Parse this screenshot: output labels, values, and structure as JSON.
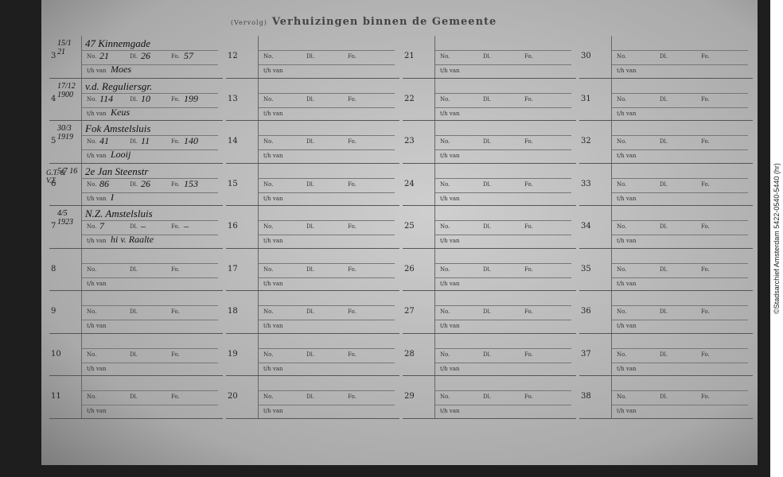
{
  "header": {
    "prefix": "(Vervolg)",
    "title": "Verhuizingen binnen de Gemeente"
  },
  "form_labels": {
    "no": "No.",
    "dl": "Dl.",
    "fo": "Fo.",
    "van": "t/h van"
  },
  "margin_note": "G.T. & V.T.",
  "columns": [
    {
      "rows": [
        {
          "number": 3,
          "date": "15/1 21",
          "address": "47 Kinnemgade",
          "no": "21",
          "dl": "26",
          "fo": "57",
          "van": "Moes"
        },
        {
          "number": 4,
          "date": "17/12 1900",
          "address": "v.d. Reguliersgr.",
          "no": "114",
          "dl": "10",
          "fo": "199",
          "van": "Keus"
        },
        {
          "number": 5,
          "date": "30/3 1919",
          "address": "Fok Amstelsluis",
          "no": "41",
          "dl": "11",
          "fo": "140",
          "van": "Looij"
        },
        {
          "number": 6,
          "date": "5/7 16",
          "address": "2e Jan Steenstr",
          "no": "86",
          "dl": "26",
          "fo": "153",
          "van": "I"
        },
        {
          "number": 7,
          "date": "4/5 1923",
          "address": "N.Z. Amstelsluis",
          "no": "7",
          "dl": "–",
          "fo": "–",
          "van": "hi v. Raalte"
        },
        {
          "number": 8
        },
        {
          "number": 9
        },
        {
          "number": 10
        },
        {
          "number": 11
        }
      ]
    },
    {
      "rows": [
        {
          "number": 12
        },
        {
          "number": 13
        },
        {
          "number": 14
        },
        {
          "number": 15
        },
        {
          "number": 16
        },
        {
          "number": 17
        },
        {
          "number": 18
        },
        {
          "number": 19
        },
        {
          "number": 20
        }
      ]
    },
    {
      "rows": [
        {
          "number": 21
        },
        {
          "number": 22
        },
        {
          "number": 23
        },
        {
          "number": 24
        },
        {
          "number": 25
        },
        {
          "number": 26
        },
        {
          "number": 27
        },
        {
          "number": 28
        },
        {
          "number": 29
        }
      ]
    },
    {
      "rows": [
        {
          "number": 30
        },
        {
          "number": 31
        },
        {
          "number": 32
        },
        {
          "number": 33
        },
        {
          "number": 34
        },
        {
          "number": 35
        },
        {
          "number": 36
        },
        {
          "number": 37
        },
        {
          "number": 38
        }
      ]
    }
  ],
  "credit": "©Stadsarchief Amsterdam 5422-0540-5440 (hr)"
}
